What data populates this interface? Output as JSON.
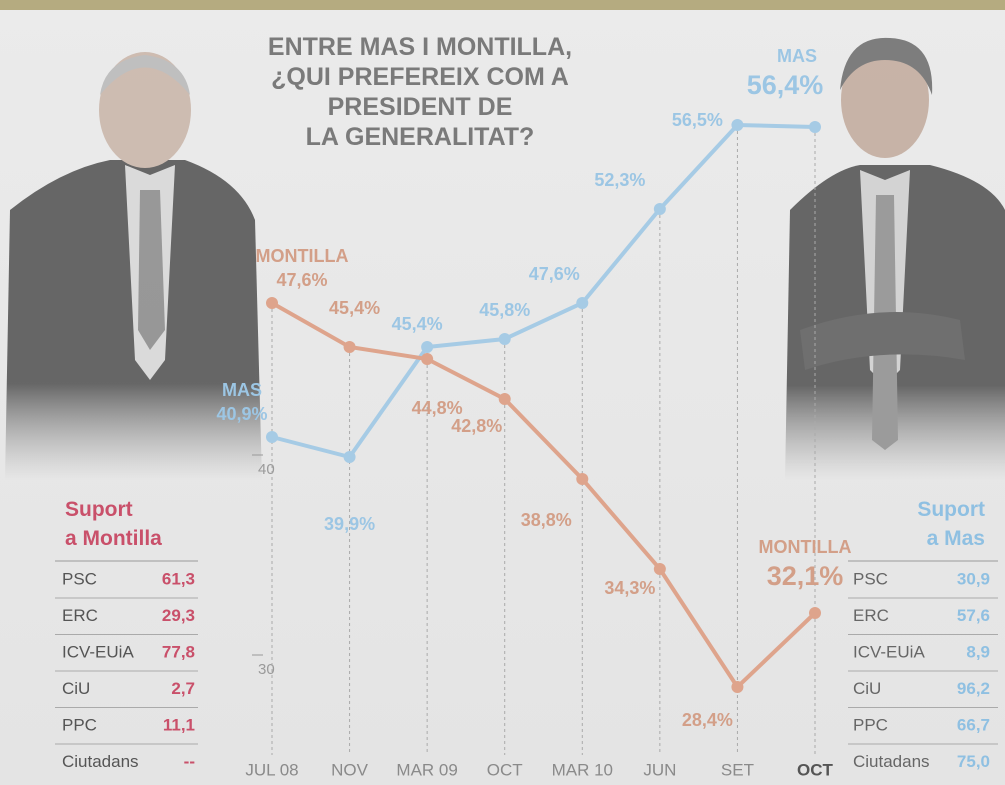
{
  "chart_data": {
    "type": "line",
    "title": "ENTRE MAS I MONTILLA,\n¿QUI PREFEREIX COM A\nPRESIDENT DE\nLA GENERALITAT?",
    "categories": [
      "JUL 08",
      "NOV",
      "MAR 09",
      "OCT",
      "MAR 10",
      "JUN",
      "SET",
      "OCT"
    ],
    "series": [
      {
        "name": "MAS",
        "color": "#a6cbe5",
        "values": [
          40.9,
          39.9,
          45.4,
          45.8,
          47.6,
          52.3,
          56.5,
          56.4
        ],
        "value_labels": [
          "40,9%",
          "39,9%",
          "45,4%",
          "45,8%",
          "47,6%",
          "52,3%",
          "56,5%",
          "56,4%"
        ]
      },
      {
        "name": "MONTILLA",
        "color": "#dea48c",
        "values": [
          47.6,
          45.4,
          44.8,
          42.8,
          38.8,
          34.3,
          28.4,
          32.1
        ],
        "value_labels": [
          "47,6%",
          "45,4%",
          "44,8%",
          "42,8%",
          "38,8%",
          "34,3%",
          "28,4%",
          "32,1%"
        ]
      }
    ],
    "ylim": [
      23.5,
      57.5
    ],
    "yticks": [
      30,
      40
    ],
    "grid": false
  },
  "tables": [
    {
      "title": "Suport a Montilla",
      "color": "#c9506a",
      "rows": [
        [
          "PSC",
          "61,3"
        ],
        [
          "ERC",
          "29,3"
        ],
        [
          "ICV-EUiA",
          "77,8"
        ],
        [
          "CiU",
          "2,7"
        ],
        [
          "PPC",
          "11,1"
        ],
        [
          "Ciutadans",
          "--"
        ]
      ]
    },
    {
      "title": "Suport a Mas",
      "color": "#8fc0e2",
      "rows": [
        [
          "PSC",
          "30,9"
        ],
        [
          "ERC",
          "57,6"
        ],
        [
          "ICV-EUiA",
          "8,9"
        ],
        [
          "CiU",
          "96,2"
        ],
        [
          "PPC",
          "66,7"
        ],
        [
          "Ciutadans",
          "75,0"
        ]
      ]
    }
  ]
}
